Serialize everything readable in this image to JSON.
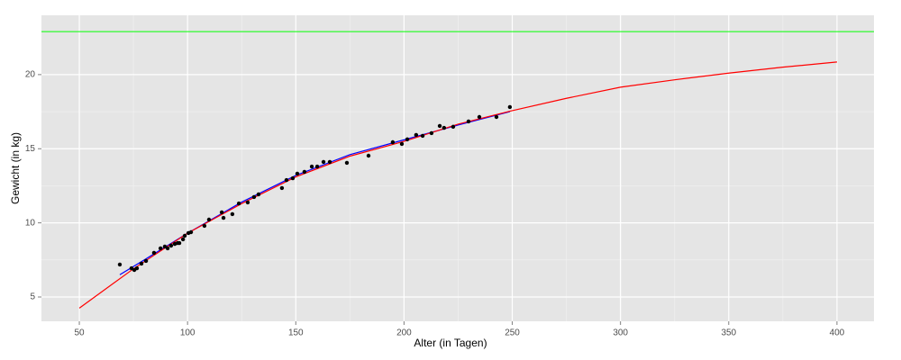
{
  "chart_data": {
    "type": "scatter",
    "x_label": "Alter (in Tagen)",
    "y_label": "Gewicht (in kg)",
    "xlim": [
      32.5,
      417.1
    ],
    "ylim": [
      3.36,
      24.0
    ],
    "xticks": [
      50,
      100,
      150,
      200,
      250,
      300,
      350,
      400
    ],
    "yticks": [
      5,
      10,
      15,
      20
    ],
    "grid": true,
    "series": [
      {
        "kind": "points",
        "color": "#000000",
        "x": [
          68.7,
          74.1,
          75.4,
          76.6,
          78.7,
          80.8,
          84.5,
          87.5,
          89.5,
          90.8,
          92.4,
          94.1,
          95.4,
          96.2,
          97.9,
          98.7,
          100.4,
          101.6,
          107.8,
          109.9,
          115.8,
          116.6,
          120.7,
          123.7,
          127.8,
          130.7,
          132.8,
          143.6,
          145.7,
          148.6,
          150.7,
          154.0,
          157.4,
          159.9,
          162.8,
          165.7,
          173.6,
          183.6,
          194.8,
          199.0,
          201.5,
          205.6,
          208.6,
          212.7,
          216.5,
          218.5,
          222.7,
          229.8,
          234.8,
          242.7,
          248.9
        ],
        "values": [
          7.19,
          6.94,
          6.82,
          6.94,
          7.25,
          7.43,
          7.98,
          8.28,
          8.4,
          8.28,
          8.46,
          8.58,
          8.64,
          8.64,
          8.89,
          9.13,
          9.31,
          9.37,
          9.8,
          10.22,
          10.71,
          10.34,
          10.59,
          11.31,
          11.38,
          11.74,
          11.92,
          12.35,
          12.89,
          13.01,
          13.32,
          13.44,
          13.8,
          13.8,
          14.11,
          14.11,
          14.05,
          14.53,
          15.44,
          15.32,
          15.63,
          15.93,
          15.87,
          16.05,
          16.54,
          16.41,
          16.48,
          16.84,
          17.14,
          17.14,
          17.81
        ]
      },
      {
        "kind": "line",
        "color": "#0000ff",
        "x": [
          68.7,
          80,
          100,
          125,
          150,
          175,
          200,
          225,
          248.9
        ],
        "values": [
          6.5,
          7.5,
          9.3,
          11.4,
          13.2,
          14.6,
          15.6,
          16.6,
          17.5
        ]
      },
      {
        "kind": "line",
        "color": "#ff0000",
        "x": [
          50,
          75,
          100,
          125,
          150,
          175,
          200,
          225,
          250,
          275,
          300,
          325,
          350,
          375,
          400
        ],
        "values": [
          4.25,
          6.9,
          9.3,
          11.3,
          13.1,
          14.5,
          15.5,
          16.66,
          17.57,
          18.4,
          19.15,
          19.65,
          20.1,
          20.5,
          20.85
        ]
      }
    ],
    "reference_line": {
      "y": 22.9,
      "color": "#00ff00"
    }
  }
}
